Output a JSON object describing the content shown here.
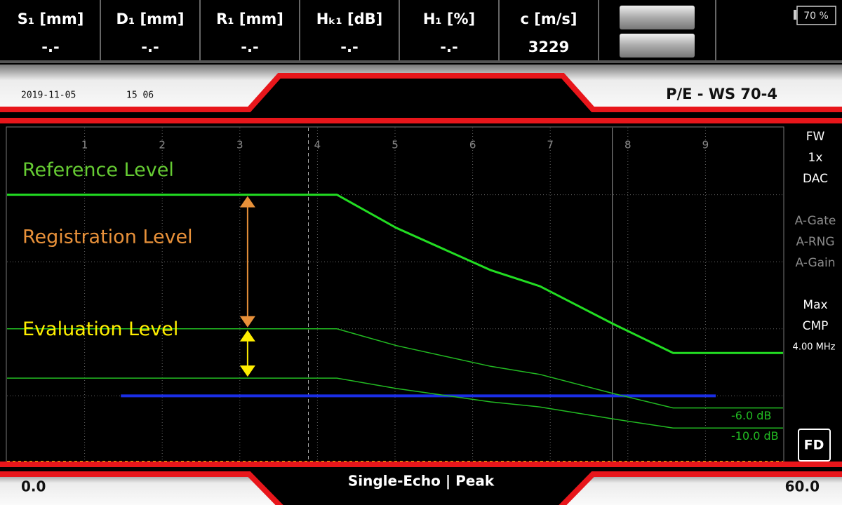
{
  "header": {
    "fields": [
      {
        "label": "S₁ [mm]",
        "value": "-.-"
      },
      {
        "label": "D₁ [mm]",
        "value": "-.-"
      },
      {
        "label": "R₁ [mm]",
        "value": "-.-"
      },
      {
        "label": "Hₖ₁ [dB]",
        "value": "-.-"
      },
      {
        "label": "H₁ [%]",
        "value": "-.-"
      },
      {
        "label": "c [m/s]",
        "value": "3229"
      }
    ],
    "battery": "70 %"
  },
  "status": {
    "date": "2019-11-05",
    "time": "15 06",
    "title": "P/E - WS 70-4"
  },
  "side_panel": {
    "items": [
      {
        "text": "FW",
        "color": "#ffffff"
      },
      {
        "text": "1x",
        "color": "#ffffff"
      },
      {
        "text": "DAC",
        "color": "#ffffff"
      },
      {
        "text": "A-Gate",
        "color": "#8a8a8a"
      },
      {
        "text": "A-RNG",
        "color": "#8a8a8a"
      },
      {
        "text": "A-Gain",
        "color": "#8a8a8a"
      },
      {
        "text": "Max",
        "color": "#ffffff"
      },
      {
        "text": "CMP",
        "color": "#ffffff"
      },
      {
        "text": "4.00 MHz",
        "color": "#ffffff"
      }
    ],
    "fd": "FD"
  },
  "chart_data": {
    "type": "line",
    "mode": "Single-Echo | Peak",
    "xlim": [
      0,
      60
    ],
    "xticks": [
      {
        "value": 0,
        "label": "0.0"
      },
      {
        "value": 60,
        "label": "60.0"
      }
    ],
    "ylim": [
      0,
      100
    ],
    "ygrid": [
      20,
      40,
      60,
      80
    ],
    "div_lim": [
      0,
      10
    ],
    "div_ticks": [
      1,
      2,
      3,
      4,
      5,
      6,
      7,
      8,
      9
    ],
    "annotations": [
      {
        "text": "Reference Level",
        "color": "#66cc33",
        "y": 80
      },
      {
        "text": "Registration Level",
        "color": "#e8913a",
        "y": 60
      },
      {
        "text": "Evaluation Level",
        "color": "#ffee00",
        "y": 32.5
      }
    ],
    "x": [
      0,
      25.5,
      30.1,
      37.4,
      41.2,
      46.9,
      51.5,
      60
    ],
    "series": [
      {
        "color": "#22dd22",
        "values": [
          80,
          80,
          70.1,
          57.5,
          52.7,
          41.4,
          32.8,
          32.8
        ]
      },
      {
        "label": "-6.0 dB",
        "color": "#22bb22",
        "values": [
          40,
          40,
          35,
          28.8,
          26.4,
          20.7,
          16.4,
          16.4
        ]
      },
      {
        "label": "-10.0 dB",
        "color": "#22bb22",
        "values": [
          25.3,
          25.3,
          22.2,
          18.2,
          16.7,
          13.1,
          10.4,
          10.4
        ]
      }
    ],
    "gate": {
      "color": "#1a2ee6",
      "x": [
        8.8,
        54.8
      ],
      "y": 20
    },
    "markers": [
      23.3,
      46.8
    ]
  }
}
